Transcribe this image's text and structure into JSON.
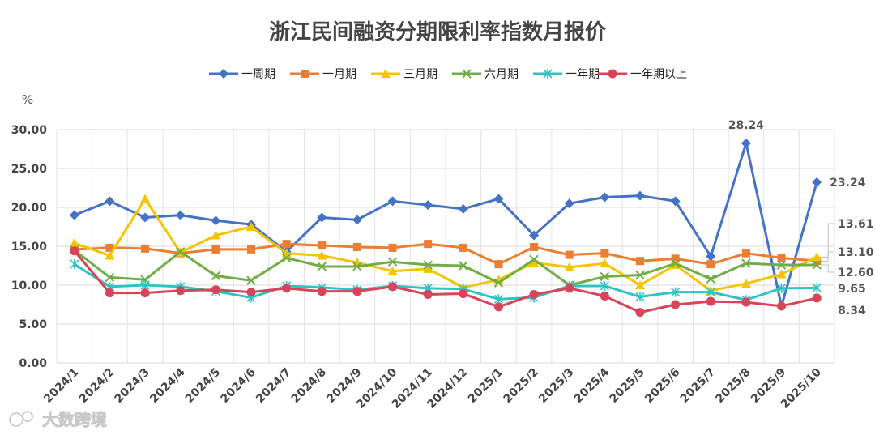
{
  "watermark": "大数跨境",
  "chart_data": {
    "type": "line",
    "title": "浙江民间融资分期限利率指数月报价",
    "ylabel": "%",
    "xlabel": "",
    "ylim": [
      0,
      30
    ],
    "yticks": [
      "0.00",
      "5.00",
      "10.00",
      "15.00",
      "20.00",
      "25.00",
      "30.00"
    ],
    "grid": true,
    "legend": "top",
    "categories": [
      "2024/1",
      "2024/2",
      "2024/3",
      "2024/4",
      "2024/5",
      "2024/6",
      "2024/7",
      "2024/8",
      "2024/9",
      "2024/10",
      "2024/11",
      "2024/12",
      "2025/1",
      "2025/2",
      "2025/3",
      "2025/4",
      "2025/5",
      "2025/6",
      "2025/7",
      "2025/8",
      "2025/9",
      "2025/10"
    ],
    "series": [
      {
        "name": "一周期",
        "color": "#4472C4",
        "marker": "diamond",
        "values": [
          19.0,
          20.8,
          18.7,
          19.0,
          18.3,
          17.8,
          14.3,
          18.7,
          18.4,
          20.8,
          20.3,
          19.8,
          21.1,
          16.4,
          20.5,
          21.3,
          21.5,
          20.8,
          13.7,
          28.24,
          7.3,
          23.24
        ]
      },
      {
        "name": "一月期",
        "color": "#ED7D31",
        "marker": "square",
        "values": [
          14.6,
          14.8,
          14.7,
          14.1,
          14.6,
          14.6,
          15.3,
          15.1,
          14.9,
          14.8,
          15.3,
          14.8,
          12.7,
          14.9,
          13.9,
          14.1,
          13.1,
          13.4,
          12.7,
          14.1,
          13.5,
          13.1
        ]
      },
      {
        "name": "三月期",
        "color": "#F5C400",
        "marker": "triangle",
        "values": [
          15.4,
          13.8,
          21.1,
          14.2,
          16.4,
          17.5,
          14.1,
          13.8,
          12.9,
          11.8,
          12.1,
          9.7,
          10.7,
          12.9,
          12.3,
          12.8,
          10.0,
          12.6,
          9.3,
          10.2,
          11.4,
          13.61
        ]
      },
      {
        "name": "六月期",
        "color": "#70AD47",
        "marker": "x",
        "values": [
          14.5,
          11.0,
          10.7,
          14.3,
          11.2,
          10.6,
          13.5,
          12.4,
          12.4,
          13.0,
          12.6,
          12.5,
          10.3,
          13.3,
          10.0,
          11.1,
          11.3,
          12.8,
          10.8,
          12.8,
          12.6,
          12.6
        ]
      },
      {
        "name": "一年期",
        "color": "#2EC4C4",
        "marker": "star",
        "values": [
          12.7,
          9.8,
          10.0,
          9.8,
          9.2,
          8.4,
          9.9,
          9.7,
          9.4,
          9.9,
          9.6,
          9.5,
          8.2,
          8.4,
          9.9,
          9.9,
          8.5,
          9.1,
          9.1,
          8.1,
          9.6,
          9.65
        ]
      },
      {
        "name": "一年期以上",
        "color": "#D9445A",
        "marker": "circle",
        "values": [
          14.4,
          9.0,
          9.0,
          9.3,
          9.4,
          9.1,
          9.6,
          9.2,
          9.2,
          9.8,
          8.8,
          8.9,
          7.2,
          8.8,
          9.6,
          8.6,
          6.5,
          7.5,
          7.9,
          7.8,
          7.3,
          8.34
        ]
      }
    ],
    "annotations": [
      {
        "text": "28.24",
        "series": "一周期",
        "index": 19
      },
      {
        "text": "23.24",
        "series": "一周期",
        "index": 21
      },
      {
        "text": "13.61",
        "series": "三月期",
        "index": 21
      },
      {
        "text": "13.10",
        "series": "一月期",
        "index": 21
      },
      {
        "text": "12.60",
        "series": "六月期",
        "index": 21
      },
      {
        "text": "9.65",
        "series": "一年期",
        "index": 21
      },
      {
        "text": "8.34",
        "series": "一年期以上",
        "index": 21
      }
    ]
  }
}
